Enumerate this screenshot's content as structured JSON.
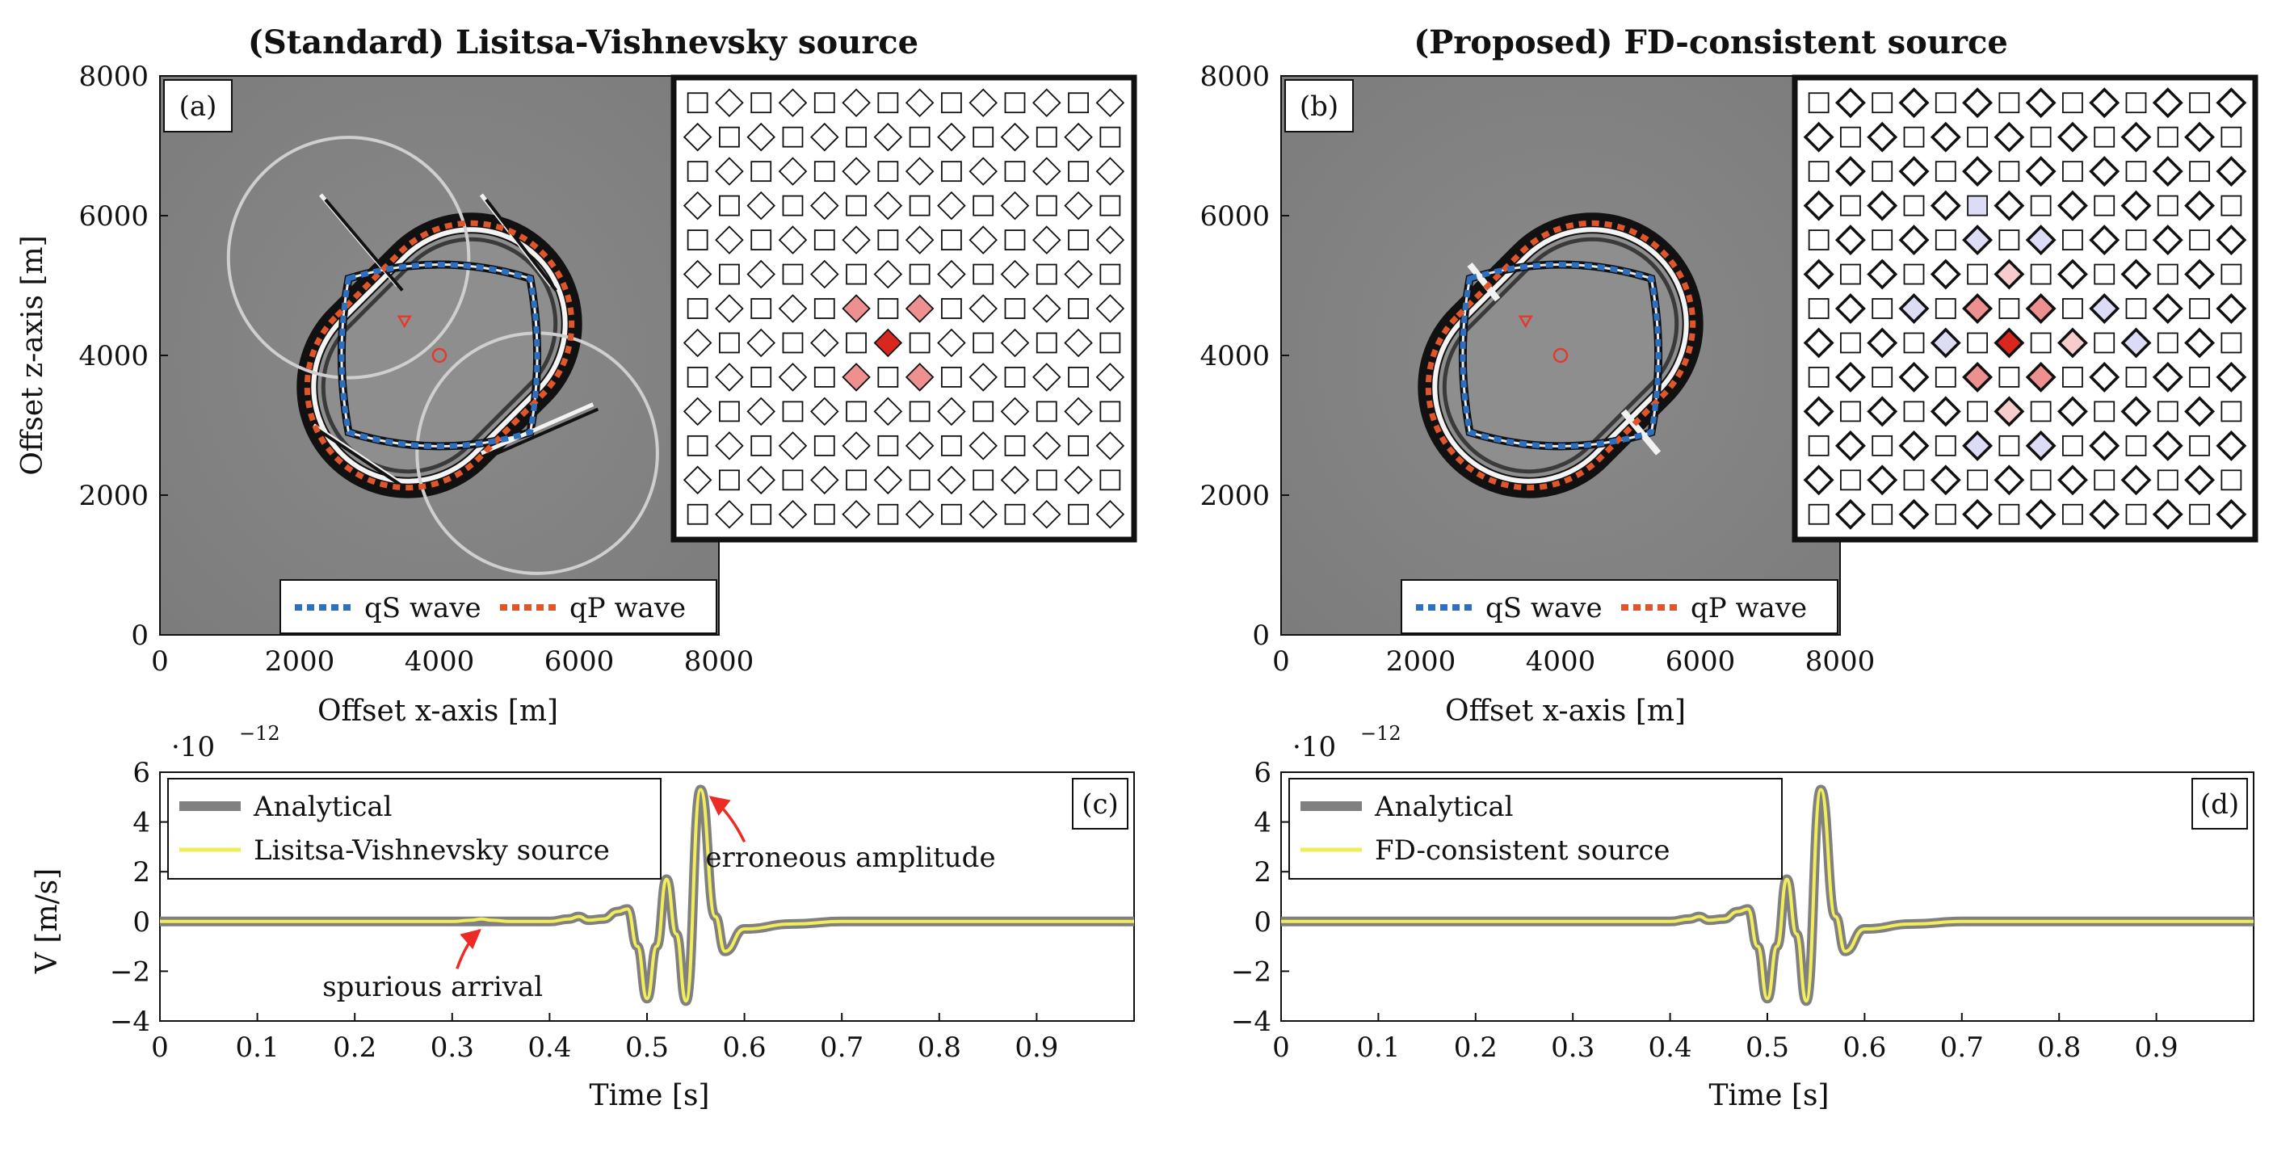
{
  "colors": {
    "qS": "#2f6fbf",
    "qP": "#e0562a",
    "analytical": "#808080",
    "simulated": "#f2ee5a",
    "annotation_arrow": "#ee2a24",
    "stencil_strong": "#d9261f",
    "stencil_mid": "#ee9090",
    "stencil_light": "#f6cccc",
    "stencil_blue": "#dcdcf6"
  },
  "panels": [
    {
      "title": "(Standard) Lisitsa-Vishnevsky source",
      "tag": "(a)",
      "xlabel": "Offset x-axis [m]",
      "ylabel": "Offset z-axis [m]",
      "xticks": [
        "0",
        "2000",
        "4000",
        "6000",
        "8000"
      ],
      "yticks": [
        "0",
        "2000",
        "4000",
        "6000",
        "8000"
      ],
      "legend": [
        "qS wave",
        "qP wave"
      ],
      "variant": "standard",
      "stencil": {
        "rows": 13,
        "cols": 14,
        "highlight": [
          {
            "row": 6,
            "col": 5,
            "level": "mid"
          },
          {
            "row": 6,
            "col": 7,
            "level": "mid"
          },
          {
            "row": 7,
            "col": 6,
            "level": "strong"
          },
          {
            "row": 8,
            "col": 5,
            "level": "mid"
          },
          {
            "row": 8,
            "col": 7,
            "level": "mid"
          }
        ]
      }
    },
    {
      "title": "(Proposed) FD-consistent source",
      "tag": "(b)",
      "xlabel": "Offset x-axis [m]",
      "ylabel": "",
      "xticks": [
        "0",
        "2000",
        "4000",
        "6000",
        "8000"
      ],
      "yticks": [
        "0",
        "2000",
        "4000",
        "6000",
        "8000"
      ],
      "legend": [
        "qS wave",
        "qP wave"
      ],
      "variant": "proposed",
      "stencil": {
        "rows": 13,
        "cols": 14,
        "highlight": [
          {
            "row": 3,
            "col": 5,
            "level": "blue"
          },
          {
            "row": 4,
            "col": 5,
            "level": "blue"
          },
          {
            "row": 4,
            "col": 7,
            "level": "blue"
          },
          {
            "row": 5,
            "col": 6,
            "level": "light"
          },
          {
            "row": 6,
            "col": 3,
            "level": "blue"
          },
          {
            "row": 6,
            "col": 5,
            "level": "mid"
          },
          {
            "row": 6,
            "col": 7,
            "level": "mid"
          },
          {
            "row": 6,
            "col": 9,
            "level": "blue"
          },
          {
            "row": 7,
            "col": 4,
            "level": "blue"
          },
          {
            "row": 7,
            "col": 6,
            "level": "strong"
          },
          {
            "row": 7,
            "col": 8,
            "level": "light"
          },
          {
            "row": 7,
            "col": 10,
            "level": "blue"
          },
          {
            "row": 8,
            "col": 5,
            "level": "mid"
          },
          {
            "row": 8,
            "col": 7,
            "level": "mid"
          },
          {
            "row": 9,
            "col": 6,
            "level": "light"
          },
          {
            "row": 10,
            "col": 5,
            "level": "blue"
          },
          {
            "row": 10,
            "col": 7,
            "level": "blue"
          }
        ]
      }
    }
  ],
  "chart_data": [
    {
      "type": "line",
      "tag": "(c)",
      "title": "",
      "xlabel": "Time [s]",
      "ylabel": "V [m/s]",
      "exponent_label": "·10",
      "exponent_power": "−12",
      "xlim": [
        0,
        1.0
      ],
      "ylim": [
        -4,
        6
      ],
      "xticks": [
        "0",
        "0.1",
        "0.2",
        "0.3",
        "0.4",
        "0.5",
        "0.6",
        "0.7",
        "0.8",
        "0.9"
      ],
      "yticks": [
        "−4",
        "−2",
        "0",
        "2",
        "4",
        "6"
      ],
      "x": [
        0,
        0.3,
        0.32,
        0.33,
        0.34,
        0.36,
        0.4,
        0.42,
        0.43,
        0.44,
        0.455,
        0.47,
        0.48,
        0.49,
        0.5,
        0.51,
        0.52,
        0.53,
        0.54,
        0.555,
        0.57,
        0.58,
        0.6,
        0.65,
        0.7,
        1.0
      ],
      "series": [
        {
          "name": "Analytical",
          "values": [
            0,
            0,
            0,
            0,
            0,
            0,
            0,
            0.1,
            0.2,
            0.05,
            0.1,
            0.4,
            0.5,
            -1.0,
            -3.1,
            -1.0,
            1.7,
            -0.5,
            -3.2,
            5.3,
            0.2,
            -1.2,
            -0.3,
            -0.1,
            0,
            0
          ]
        },
        {
          "name": "Lisitsa-Vishnevsky source",
          "values": [
            0,
            0,
            0.05,
            0.1,
            0.05,
            0,
            0,
            0.1,
            0.2,
            0.05,
            0.1,
            0.4,
            0.5,
            -1.0,
            -3.1,
            -1.0,
            1.7,
            -0.5,
            -3.2,
            5.3,
            0.2,
            -1.2,
            -0.3,
            -0.1,
            0,
            0
          ]
        }
      ],
      "annotations": [
        {
          "text": "erroneous amplitude",
          "x": 0.56,
          "y": 5.3
        },
        {
          "text": "spurious arrival",
          "x": 0.33,
          "y": 0.1
        }
      ],
      "legend_position": "top-left"
    },
    {
      "type": "line",
      "tag": "(d)",
      "title": "",
      "xlabel": "Time [s]",
      "ylabel": "",
      "exponent_label": "·10",
      "exponent_power": "−12",
      "xlim": [
        0,
        1.0
      ],
      "ylim": [
        -4,
        6
      ],
      "xticks": [
        "0",
        "0.1",
        "0.2",
        "0.3",
        "0.4",
        "0.5",
        "0.6",
        "0.7",
        "0.8",
        "0.9"
      ],
      "yticks": [
        "−4",
        "−2",
        "0",
        "2",
        "4",
        "6"
      ],
      "x": [
        0,
        0.3,
        0.32,
        0.33,
        0.34,
        0.36,
        0.4,
        0.42,
        0.43,
        0.44,
        0.455,
        0.47,
        0.48,
        0.49,
        0.5,
        0.51,
        0.52,
        0.53,
        0.54,
        0.555,
        0.57,
        0.58,
        0.6,
        0.65,
        0.7,
        1.0
      ],
      "series": [
        {
          "name": "Analytical",
          "values": [
            0,
            0,
            0,
            0,
            0,
            0,
            0,
            0.1,
            0.2,
            0.05,
            0.1,
            0.4,
            0.5,
            -1.0,
            -3.1,
            -1.0,
            1.7,
            -0.5,
            -3.2,
            5.3,
            0.2,
            -1.2,
            -0.3,
            -0.1,
            0,
            0
          ]
        },
        {
          "name": "FD-consistent source",
          "values": [
            0,
            0,
            0,
            0,
            0,
            0,
            0,
            0.1,
            0.2,
            0.05,
            0.1,
            0.4,
            0.5,
            -1.0,
            -3.1,
            -1.0,
            1.7,
            -0.5,
            -3.2,
            5.3,
            0.2,
            -1.2,
            -0.3,
            -0.1,
            0,
            0
          ]
        }
      ],
      "annotations": [],
      "legend_position": "top-left"
    }
  ]
}
